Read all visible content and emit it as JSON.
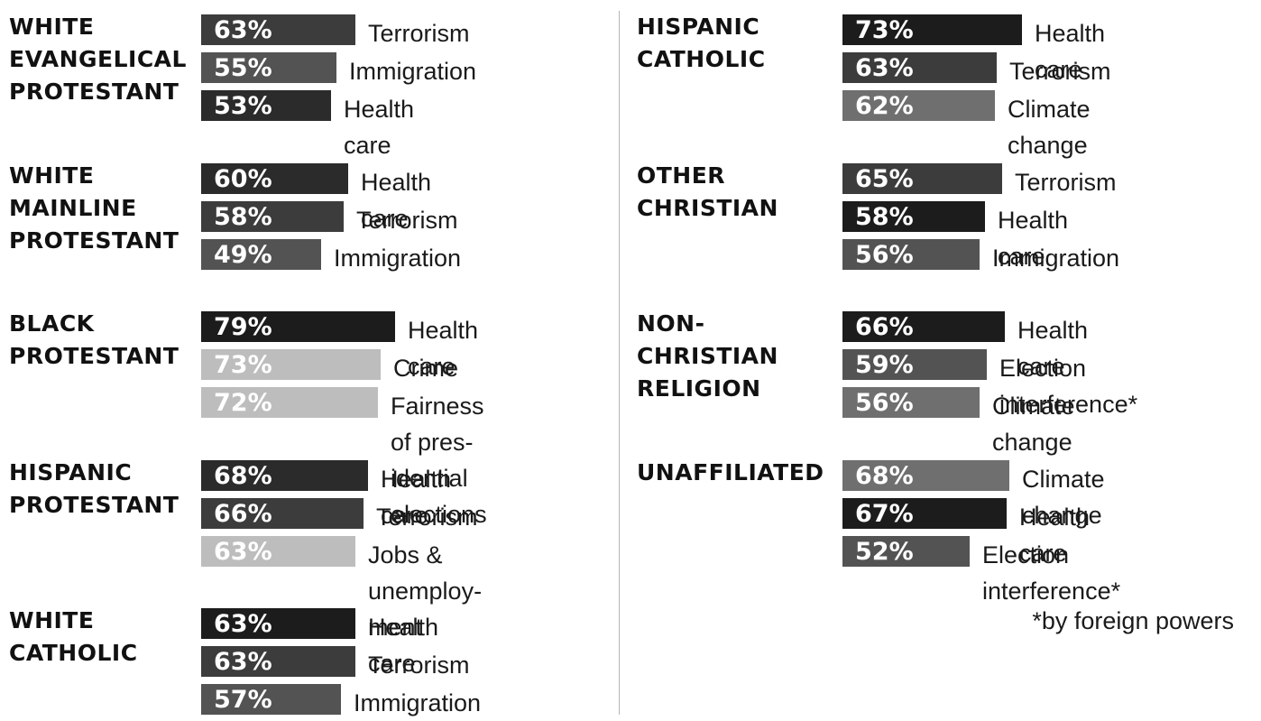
{
  "chart_data": {
    "type": "bar",
    "colors": {
      "very_dark": "#1c1c1c",
      "dark": "#2b2b2b",
      "medium_dark": "#3c3c3c",
      "medium": "#535353",
      "medium_light": "#6f6f6f",
      "light": "#bdbdbd"
    },
    "groups": [
      {
        "name": "WHITE\nEVANGELICAL\nPROTESTANT",
        "items": [
          {
            "label": "Terrorism",
            "value": 63,
            "value_text": "63%",
            "shade": "medium_dark"
          },
          {
            "label": "Immigration",
            "value": 55,
            "value_text": "55%",
            "shade": "medium"
          },
          {
            "label": "Health care",
            "value": 53,
            "value_text": "53%",
            "shade": "dark"
          }
        ]
      },
      {
        "name": "WHITE\nMAINLINE\nPROTESTANT",
        "items": [
          {
            "label": "Health care",
            "value": 60,
            "value_text": "60%",
            "shade": "dark"
          },
          {
            "label": "Terrorism",
            "value": 58,
            "value_text": "58%",
            "shade": "medium_dark"
          },
          {
            "label": "Immigration",
            "value": 49,
            "value_text": "49%",
            "shade": "medium"
          }
        ]
      },
      {
        "name": "BLACK\nPROTESTANT",
        "items": [
          {
            "label": "Health care",
            "value": 79,
            "value_text": "79%",
            "shade": "very_dark"
          },
          {
            "label": "Crime",
            "value": 73,
            "value_text": "73%",
            "shade": "light"
          },
          {
            "label": "Fairness of pres-\nidential elections",
            "value": 72,
            "value_text": "72%",
            "shade": "light"
          }
        ]
      },
      {
        "name": "HISPANIC\nPROTESTANT",
        "items": [
          {
            "label": "Health care",
            "value": 68,
            "value_text": "68%",
            "shade": "dark"
          },
          {
            "label": "Terrorism",
            "value": 66,
            "value_text": "66%",
            "shade": "medium_dark"
          },
          {
            "label": "Jobs & unemploy-\nment",
            "value": 63,
            "value_text": "63%",
            "shade": "light"
          }
        ]
      },
      {
        "name": "WHITE\nCATHOLIC",
        "items": [
          {
            "label": "Health care",
            "value": 63,
            "value_text": "63%",
            "shade": "very_dark"
          },
          {
            "label": "Terrorism",
            "value": 63,
            "value_text": "63%",
            "shade": "medium_dark"
          },
          {
            "label": "Immigration",
            "value": 57,
            "value_text": "57%",
            "shade": "medium"
          }
        ]
      },
      {
        "name": "HISPANIC\nCATHOLIC",
        "items": [
          {
            "label": "Health care",
            "value": 73,
            "value_text": "73%",
            "shade": "very_dark"
          },
          {
            "label": "Terrorism",
            "value": 63,
            "value_text": "63%",
            "shade": "medium_dark"
          },
          {
            "label": "Climate change",
            "value": 62,
            "value_text": "62%",
            "shade": "medium_light"
          }
        ]
      },
      {
        "name": "OTHER\nCHRISTIAN",
        "items": [
          {
            "label": "Terrorism",
            "value": 65,
            "value_text": "65%",
            "shade": "medium_dark"
          },
          {
            "label": "Health care",
            "value": 58,
            "value_text": "58%",
            "shade": "very_dark"
          },
          {
            "label": "Immigration",
            "value": 56,
            "value_text": "56%",
            "shade": "medium"
          }
        ]
      },
      {
        "name": "NON-\nCHRISTIAN\nRELIGION",
        "items": [
          {
            "label": "Health care",
            "value": 66,
            "value_text": "66%",
            "shade": "very_dark"
          },
          {
            "label": "Election interference*",
            "value": 59,
            "value_text": "59%",
            "shade": "medium"
          },
          {
            "label": "Climate change",
            "value": 56,
            "value_text": "56%",
            "shade": "medium_light"
          }
        ]
      },
      {
        "name": "UNAFFILIATED",
        "items": [
          {
            "label": "Climate change",
            "value": 68,
            "value_text": "68%",
            "shade": "medium_light"
          },
          {
            "label": "Health care",
            "value": 67,
            "value_text": "67%",
            "shade": "very_dark"
          },
          {
            "label": "Election interference*",
            "value": 52,
            "value_text": "52%",
            "shade": "medium"
          }
        ]
      }
    ],
    "footnote": "*by foreign powers"
  }
}
